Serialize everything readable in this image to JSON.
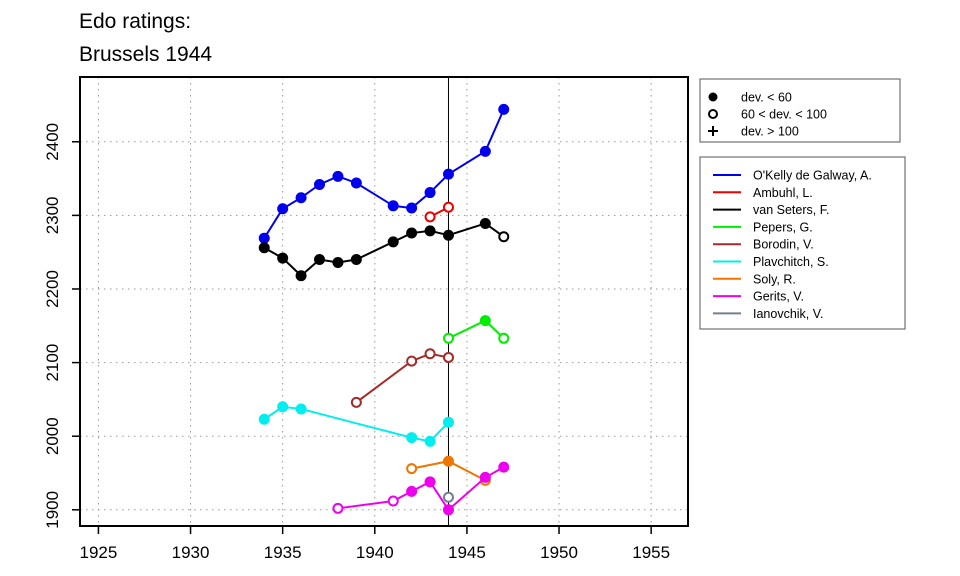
{
  "chart_data": {
    "type": "line",
    "title": [
      "Edo ratings:",
      "Brussels 1944"
    ],
    "xlabel": "",
    "ylabel": "",
    "xlim": [
      1924,
      1957
    ],
    "ylim": [
      1878,
      2488
    ],
    "x_ticks": [
      1925,
      1930,
      1935,
      1940,
      1945,
      1950,
      1955
    ],
    "y_ticks": [
      1900,
      2000,
      2100,
      2200,
      2300,
      2400
    ],
    "grid": true,
    "reference_line_x": 1944,
    "marker_legend": {
      "placement": "top-right",
      "items": [
        {
          "label": "dev. < 60",
          "marker": "filled"
        },
        {
          "label": "60 < dev. < 100",
          "marker": "open"
        },
        {
          "label": "dev. > 100",
          "marker": "plus"
        }
      ]
    },
    "series_legend_placement": "right",
    "series": [
      {
        "name": "O'Kelly de Galway, A.",
        "color": "#0000ee",
        "points": [
          [
            1934,
            2269,
            "filled"
          ],
          [
            1935,
            2309,
            "filled"
          ],
          [
            1936,
            2324,
            "filled"
          ],
          [
            1937,
            2342,
            "filled"
          ],
          [
            1938,
            2353,
            "filled"
          ],
          [
            1939,
            2344,
            "filled"
          ],
          [
            1941,
            2313,
            "filled"
          ],
          [
            1942,
            2310,
            "filled"
          ],
          [
            1943,
            2331,
            "filled"
          ],
          [
            1944,
            2356,
            "filled"
          ],
          [
            1946,
            2387,
            "filled"
          ],
          [
            1947,
            2444,
            "filled"
          ]
        ]
      },
      {
        "name": "Ambuhl, L.",
        "color": "#ee0000",
        "points": [
          [
            1943,
            2298,
            "open"
          ],
          [
            1944,
            2311,
            "open"
          ]
        ]
      },
      {
        "name": "van Seters, F.",
        "color": "#000000",
        "points": [
          [
            1934,
            2256,
            "filled"
          ],
          [
            1935,
            2242,
            "filled"
          ],
          [
            1936,
            2218,
            "filled"
          ],
          [
            1937,
            2240,
            "filled"
          ],
          [
            1938,
            2236,
            "filled"
          ],
          [
            1939,
            2240,
            "filled"
          ],
          [
            1941,
            2264,
            "filled"
          ],
          [
            1942,
            2276,
            "filled"
          ],
          [
            1943,
            2279,
            "filled"
          ],
          [
            1944,
            2273,
            "filled"
          ],
          [
            1946,
            2289,
            "filled"
          ],
          [
            1947,
            2271,
            "open"
          ]
        ]
      },
      {
        "name": "Pepers, G.",
        "color": "#00ee00",
        "points": [
          [
            1944,
            2133,
            "open"
          ],
          [
            1946,
            2157,
            "filled"
          ],
          [
            1947,
            2133,
            "open"
          ]
        ]
      },
      {
        "name": "Borodin, V.",
        "color": "#a52a2a",
        "points": [
          [
            1939,
            2046,
            "open"
          ],
          [
            1942,
            2102,
            "open"
          ],
          [
            1943,
            2112,
            "open"
          ],
          [
            1944,
            2107,
            "open"
          ]
        ]
      },
      {
        "name": "Plavchitch, S.",
        "color": "#00eeee",
        "points": [
          [
            1934,
            2023,
            "filled"
          ],
          [
            1935,
            2040,
            "filled"
          ],
          [
            1936,
            2037,
            "filled"
          ],
          [
            1942,
            1998,
            "filled"
          ],
          [
            1943,
            1993,
            "filled"
          ],
          [
            1944,
            2019,
            "filled"
          ]
        ]
      },
      {
        "name": "Soly, R.",
        "color": "#ee7600",
        "points": [
          [
            1942,
            1956,
            "open"
          ],
          [
            1944,
            1966,
            "filled"
          ],
          [
            1946,
            1940,
            "open"
          ]
        ]
      },
      {
        "name": "Gerits, V.",
        "color": "#ee00ee",
        "points": [
          [
            1938,
            1902,
            "open"
          ],
          [
            1941,
            1912,
            "open"
          ],
          [
            1942,
            1925,
            "filled"
          ],
          [
            1943,
            1938,
            "filled"
          ],
          [
            1944,
            1900,
            "filled"
          ],
          [
            1946,
            1944,
            "filled"
          ],
          [
            1947,
            1958,
            "filled"
          ]
        ]
      },
      {
        "name": "Ianovchik, V.",
        "color": "#708090",
        "points": [
          [
            1944,
            1917,
            "open"
          ]
        ]
      }
    ]
  }
}
